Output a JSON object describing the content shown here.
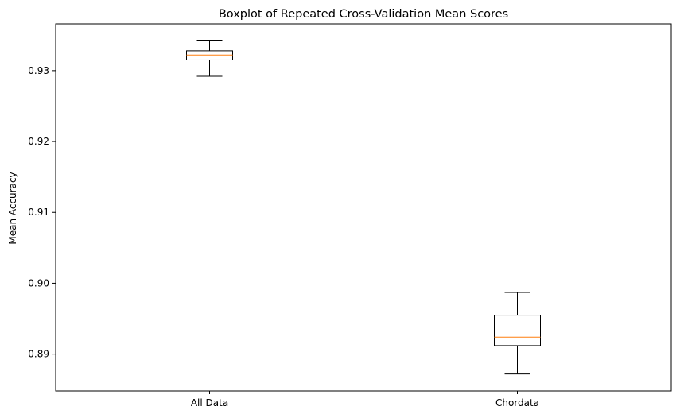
{
  "chart_data": {
    "type": "box",
    "title": "Boxplot of Repeated Cross-Validation Mean Scores",
    "xlabel": "",
    "ylabel": "Mean Accuracy",
    "ylim": [
      0.8848,
      0.9366
    ],
    "yticks": [
      0.89,
      0.9,
      0.91,
      0.92,
      0.93
    ],
    "ytick_labels": [
      "0.89",
      "0.90",
      "0.91",
      "0.92",
      "0.93"
    ],
    "grid": false,
    "categories": [
      "All Data",
      "Chordata"
    ],
    "boxes": [
      {
        "label": "All Data",
        "whisker_low": 0.9292,
        "q1": 0.9315,
        "median": 0.9322,
        "q3": 0.9328,
        "whisker_high": 0.9343
      },
      {
        "label": "Chordata",
        "whisker_low": 0.8872,
        "q1": 0.8912,
        "median": 0.8924,
        "q3": 0.8955,
        "whisker_high": 0.8987
      }
    ],
    "colors": {
      "box": "#000000",
      "median": "#ff7f0e",
      "axes": "#000000"
    }
  }
}
